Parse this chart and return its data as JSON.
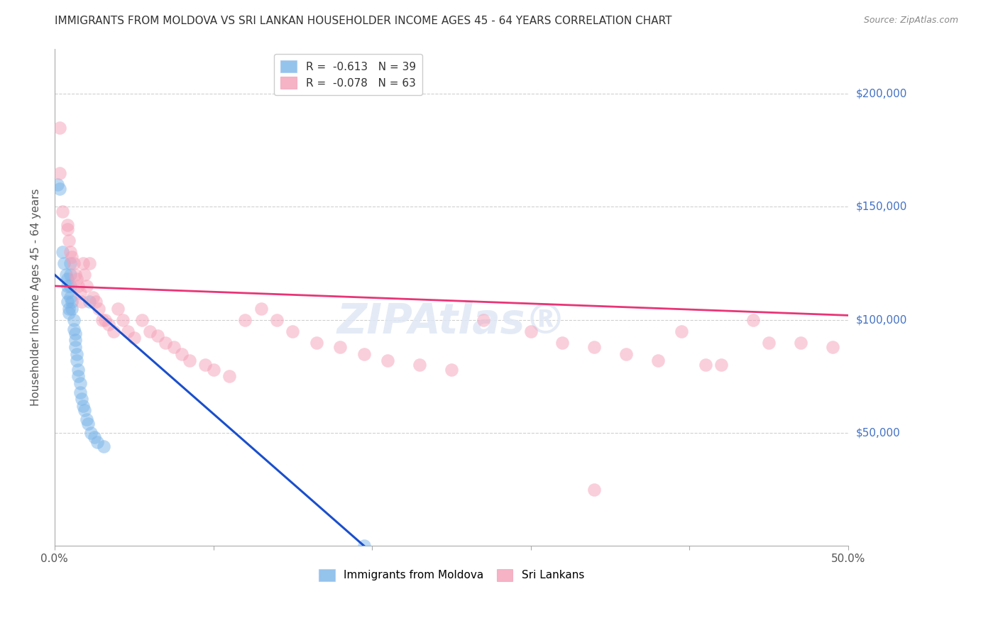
{
  "title": "IMMIGRANTS FROM MOLDOVA VS SRI LANKAN HOUSEHOLDER INCOME AGES 45 - 64 YEARS CORRELATION CHART",
  "source": "Source: ZipAtlas.com",
  "ylabel": "Householder Income Ages 45 - 64 years",
  "y_tick_labels": [
    "$50,000",
    "$100,000",
    "$150,000",
    "$200,000"
  ],
  "y_tick_values": [
    50000,
    100000,
    150000,
    200000
  ],
  "y_tick_color": "#4472c4",
  "ylim": [
    0,
    220000
  ],
  "xlim": [
    0.0,
    0.5
  ],
  "legend_moldova_R": "-0.613",
  "legend_moldova_N": "39",
  "legend_srilanka_R": "-0.078",
  "legend_srilanka_N": "63",
  "moldova_color": "#7ab4e8",
  "srilanka_color": "#f5a0b8",
  "moldova_line_color": "#1a4fcc",
  "srilanka_line_color": "#e83575",
  "background_color": "#ffffff",
  "grid_color": "#d0d0d0",
  "moldova_x": [
    0.002,
    0.003,
    0.005,
    0.006,
    0.007,
    0.008,
    0.008,
    0.008,
    0.008,
    0.009,
    0.009,
    0.01,
    0.01,
    0.01,
    0.01,
    0.011,
    0.011,
    0.012,
    0.012,
    0.013,
    0.013,
    0.013,
    0.014,
    0.014,
    0.015,
    0.015,
    0.016,
    0.016,
    0.017,
    0.018,
    0.019,
    0.02,
    0.021,
    0.022,
    0.023,
    0.025,
    0.027,
    0.031,
    0.195
  ],
  "moldova_y": [
    160000,
    158000,
    130000,
    125000,
    120000,
    118000,
    115000,
    112000,
    108000,
    105000,
    103000,
    125000,
    120000,
    115000,
    110000,
    108000,
    105000,
    100000,
    96000,
    94000,
    91000,
    88000,
    85000,
    82000,
    78000,
    75000,
    72000,
    68000,
    65000,
    62000,
    60000,
    56000,
    54000,
    108000,
    50000,
    48000,
    46000,
    44000,
    0
  ],
  "srilanka_x": [
    0.003,
    0.003,
    0.005,
    0.008,
    0.008,
    0.009,
    0.01,
    0.011,
    0.012,
    0.013,
    0.014,
    0.015,
    0.016,
    0.017,
    0.018,
    0.019,
    0.02,
    0.022,
    0.024,
    0.026,
    0.028,
    0.03,
    0.032,
    0.034,
    0.037,
    0.04,
    0.043,
    0.046,
    0.05,
    0.055,
    0.06,
    0.065,
    0.07,
    0.075,
    0.08,
    0.085,
    0.095,
    0.1,
    0.11,
    0.12,
    0.13,
    0.14,
    0.15,
    0.165,
    0.18,
    0.195,
    0.21,
    0.23,
    0.25,
    0.27,
    0.3,
    0.32,
    0.34,
    0.36,
    0.38,
    0.41,
    0.44,
    0.47,
    0.395,
    0.42,
    0.45,
    0.49,
    0.34
  ],
  "srilanka_y": [
    165000,
    185000,
    148000,
    142000,
    140000,
    135000,
    130000,
    128000,
    125000,
    120000,
    118000,
    115000,
    112000,
    108000,
    125000,
    120000,
    115000,
    125000,
    110000,
    108000,
    105000,
    100000,
    100000,
    98000,
    95000,
    105000,
    100000,
    95000,
    92000,
    100000,
    95000,
    93000,
    90000,
    88000,
    85000,
    82000,
    80000,
    78000,
    75000,
    100000,
    105000,
    100000,
    95000,
    90000,
    88000,
    85000,
    82000,
    80000,
    78000,
    100000,
    95000,
    90000,
    88000,
    85000,
    82000,
    80000,
    100000,
    90000,
    95000,
    80000,
    90000,
    88000,
    25000
  ],
  "moldova_line_x0": 0.0,
  "moldova_line_y0": 120000,
  "moldova_line_x1": 0.195,
  "moldova_line_y1": 0,
  "srilanka_line_x0": 0.0,
  "srilanka_line_y0": 115000,
  "srilanka_line_x1": 0.5,
  "srilanka_line_y1": 102000
}
